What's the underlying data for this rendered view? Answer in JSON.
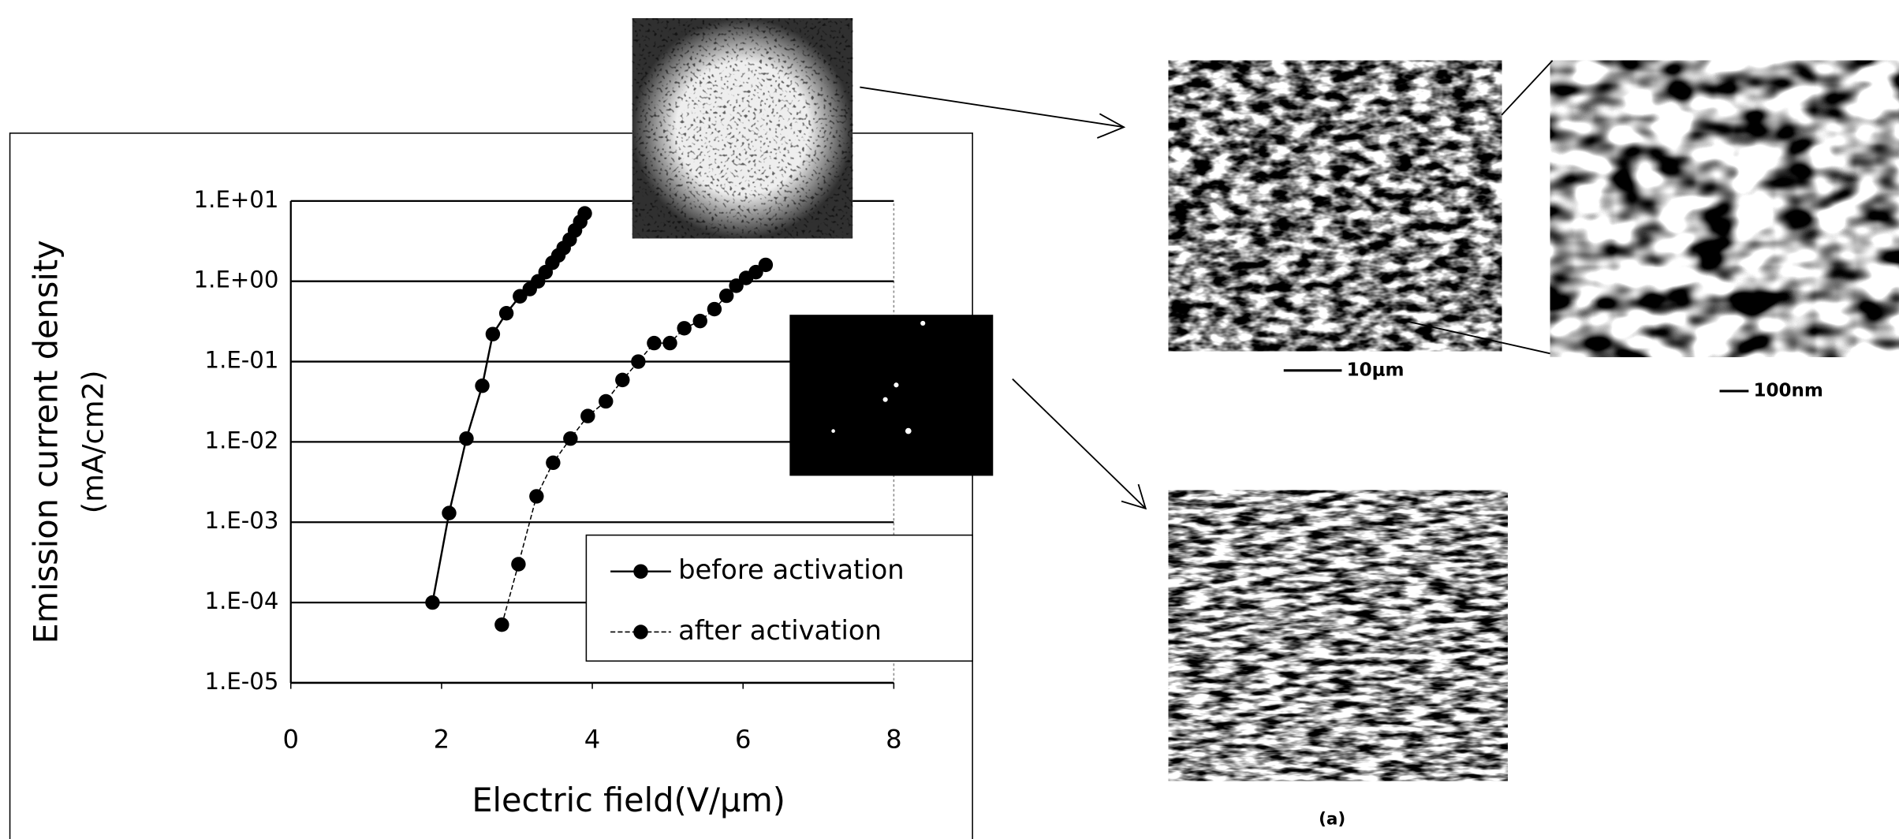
{
  "chart_data": {
    "type": "line",
    "xlabel": "Electric field(V/μm)",
    "ylabel": [
      "Emission current density",
      "(mA/cm2)"
    ],
    "xlim": [
      0,
      8
    ],
    "xticks": [
      0,
      2,
      4,
      6,
      8
    ],
    "ylim": [
      1e-05,
      10
    ],
    "log_y": true,
    "grid": true,
    "legend": "lower right",
    "yticks": [
      {
        "value": 1e-05,
        "label": "1.E-05"
      },
      {
        "value": 0.0001,
        "label": "1.E-04"
      },
      {
        "value": 0.001,
        "label": "1.E-03"
      },
      {
        "value": 0.01,
        "label": "1.E-02"
      },
      {
        "value": 0.1,
        "label": "1.E-01"
      },
      {
        "value": 1,
        "label": "1.E+00"
      },
      {
        "value": 10,
        "label": "1.E+01"
      }
    ],
    "series": [
      {
        "name": "before activation",
        "color": "#000000",
        "dashed": false,
        "x": [
          1.88,
          2.1,
          2.33,
          2.54,
          2.68,
          2.86,
          3.04,
          3.17,
          3.28,
          3.38,
          3.47,
          3.55,
          3.62,
          3.7,
          3.77,
          3.84,
          3.9
        ],
        "values": [
          0.0001,
          0.0013,
          0.011,
          0.05,
          0.22,
          0.4,
          0.65,
          0.8,
          1.0,
          1.3,
          1.7,
          2.1,
          2.6,
          3.3,
          4.3,
          5.5,
          7.0
        ]
      },
      {
        "name": "after activation",
        "color": "#000000",
        "dashed": true,
        "x": [
          2.8,
          3.02,
          3.26,
          3.48,
          3.71,
          3.94,
          4.18,
          4.4,
          4.61,
          4.82,
          5.03,
          5.22,
          5.43,
          5.62,
          5.78,
          5.91,
          6.04,
          6.17,
          6.3
        ],
        "values": [
          5.3e-05,
          0.0003,
          0.0021,
          0.0055,
          0.011,
          0.021,
          0.032,
          0.059,
          0.1,
          0.17,
          0.17,
          0.26,
          0.32,
          0.45,
          0.66,
          0.88,
          1.1,
          1.3,
          1.6
        ]
      }
    ]
  },
  "figure": {
    "scale_bars": [
      "10μm",
      "100nm"
    ],
    "panel_label": "(a)"
  }
}
